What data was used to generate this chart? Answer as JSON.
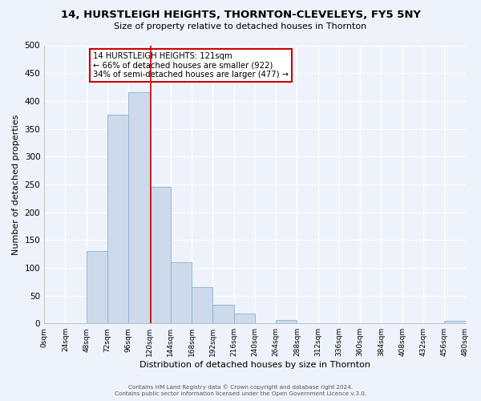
{
  "title": "14, HURSTLEIGH HEIGHTS, THORNTON-CLEVELEYS, FY5 5NY",
  "subtitle": "Size of property relative to detached houses in Thornton",
  "xlabel": "Distribution of detached houses by size in Thornton",
  "ylabel": "Number of detached properties",
  "bar_color": "#ccdaeb",
  "bar_edge_color": "#8ab0cf",
  "bin_edges": [
    0,
    24,
    48,
    72,
    96,
    120,
    144,
    168,
    192,
    216,
    240,
    264,
    288,
    312,
    336,
    360,
    384,
    408,
    432,
    456,
    480
  ],
  "bar_heights": [
    0,
    0,
    130,
    375,
    415,
    245,
    110,
    65,
    33,
    17,
    0,
    6,
    0,
    0,
    0,
    0,
    0,
    0,
    0,
    5
  ],
  "tick_labels": [
    "0sqm",
    "24sqm",
    "48sqm",
    "72sqm",
    "96sqm",
    "120sqm",
    "144sqm",
    "168sqm",
    "192sqm",
    "216sqm",
    "240sqm",
    "264sqm",
    "288sqm",
    "312sqm",
    "336sqm",
    "360sqm",
    "384sqm",
    "408sqm",
    "432sqm",
    "456sqm",
    "480sqm"
  ],
  "ylim": [
    0,
    500
  ],
  "property_line_x": 121,
  "annotation_title": "14 HURSTLEIGH HEIGHTS: 121sqm",
  "annotation_line1": "← 66% of detached houses are smaller (922)",
  "annotation_line2": "34% of semi-detached houses are larger (477) →",
  "annotation_box_color": "#ffffff",
  "annotation_box_edge": "#cc0000",
  "vline_color": "#cc0000",
  "footer1": "Contains HM Land Registry data © Crown copyright and database right 2024.",
  "footer2": "Contains public sector information licensed under the Open Government Licence v.3.0.",
  "background_color": "#eef2fa",
  "grid_color": "#ffffff",
  "yticks": [
    0,
    50,
    100,
    150,
    200,
    250,
    300,
    350,
    400,
    450,
    500
  ]
}
